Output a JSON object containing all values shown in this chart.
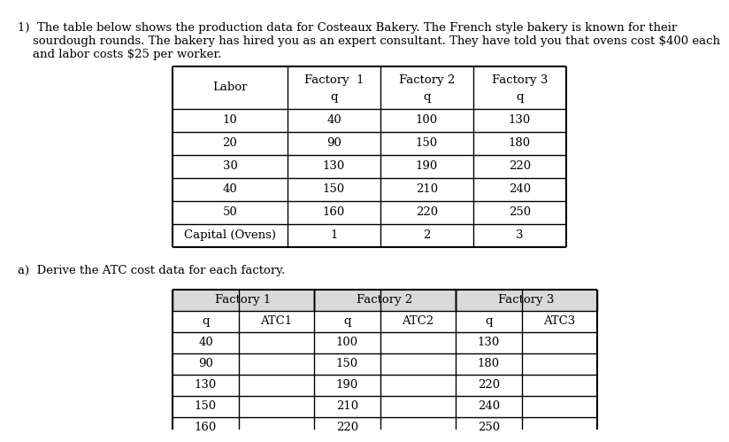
{
  "intro_lines": [
    "1)  The table below shows the production data for Costeaux Bakery. The French style bakery is known for their",
    "    sourdough rounds. The bakery has hired you as an expert consultant. They have told you that ovens cost $400 each",
    "    and labor costs $25 per worker."
  ],
  "table1_headers": [
    "Labor",
    "Factory  1",
    "Factory 2",
    "Factory 3"
  ],
  "table1_subheaders": [
    "",
    "q",
    "q",
    "q"
  ],
  "table1_rows": [
    [
      "10",
      "40",
      "100",
      "130"
    ],
    [
      "20",
      "90",
      "150",
      "180"
    ],
    [
      "30",
      "130",
      "190",
      "220"
    ],
    [
      "40",
      "150",
      "210",
      "240"
    ],
    [
      "50",
      "160",
      "220",
      "250"
    ],
    [
      "Capital (Ovens)",
      "1",
      "2",
      "3"
    ]
  ],
  "part_a_text": "a)  Derive the ATC cost data for each factory.",
  "table2_groups": [
    "Factory 1",
    "Factory 2",
    "Factory 3"
  ],
  "table2_subheaders": [
    "q",
    "ATC1",
    "q",
    "ATC2",
    "q",
    "ATC3"
  ],
  "table2_rows": [
    [
      "40",
      "",
      "100",
      "",
      "130",
      ""
    ],
    [
      "90",
      "",
      "150",
      "",
      "180",
      ""
    ],
    [
      "130",
      "",
      "190",
      "",
      "220",
      ""
    ],
    [
      "150",
      "",
      "210",
      "",
      "240",
      ""
    ],
    [
      "160",
      "",
      "220",
      "",
      "250",
      ""
    ]
  ],
  "bg_color": "#ffffff",
  "text_color": "#000000",
  "grey_header_bg": "#d9d9d9",
  "font_size": 9.5,
  "line_color": "#000000"
}
